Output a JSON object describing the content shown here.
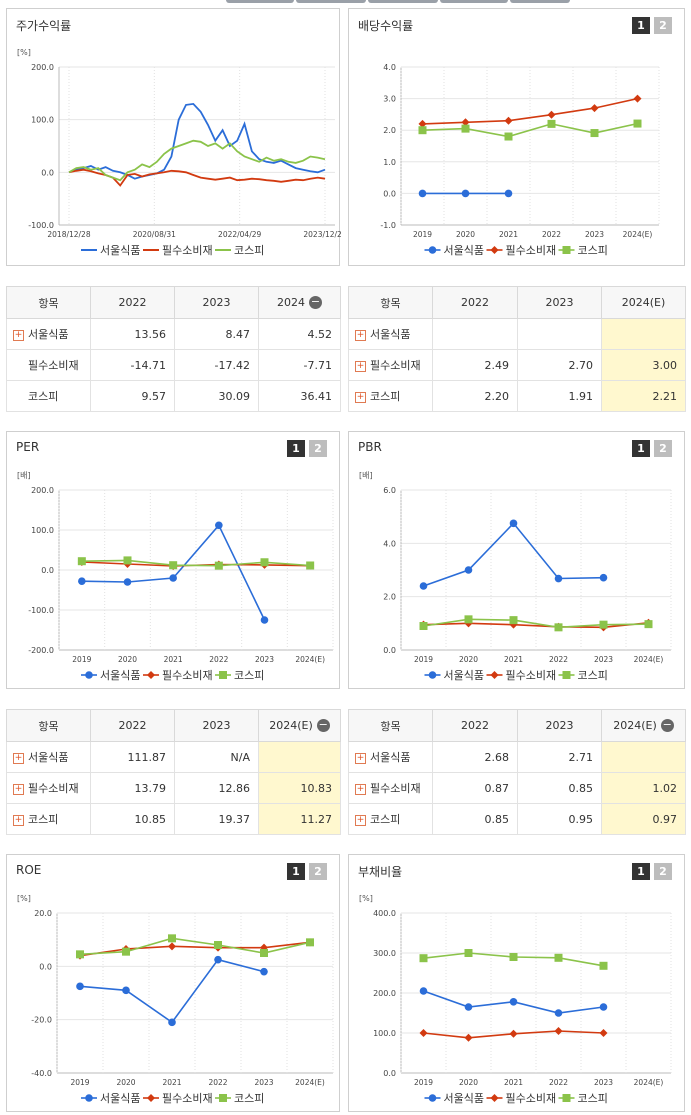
{
  "colors": {
    "seoul": "#2b6dd8",
    "consumer": "#d23a10",
    "kospi": "#8bc34a"
  },
  "icons": {
    "plus": "plus-icon",
    "minus": "minus-icon"
  },
  "legend": [
    "서울식품",
    "필수소비재",
    "코스피"
  ],
  "panels": {
    "stock": {
      "title": "주가수익률"
    },
    "dividend": {
      "title": "배당수익률",
      "btn1": "1",
      "btn2": "2"
    },
    "per": {
      "title": "PER",
      "btn1": "1",
      "btn2": "2"
    },
    "pbr": {
      "title": "PBR",
      "btn1": "1",
      "btn2": "2"
    },
    "roe": {
      "title": "ROE",
      "btn1": "1",
      "btn2": "2"
    },
    "debt": {
      "title": "부채비율",
      "btn1": "1",
      "btn2": "2"
    }
  },
  "tables": {
    "stock": {
      "headers": [
        "항목",
        "2022",
        "2023",
        "2024"
      ],
      "minus": "−",
      "rows": [
        {
          "label": "서울식품",
          "expand": true,
          "values": [
            "13.56",
            "8.47",
            "4.52"
          ]
        },
        {
          "label": "필수소비재",
          "expand": false,
          "values": [
            "-14.71",
            "-17.42",
            "-7.71"
          ]
        },
        {
          "label": "코스피",
          "expand": false,
          "values": [
            "9.57",
            "30.09",
            "36.41"
          ]
        }
      ]
    },
    "dividend": {
      "headers": [
        "항목",
        "2022",
        "2023",
        "2024(E)"
      ],
      "minus": "",
      "rows": [
        {
          "label": "서울식품",
          "expand": true,
          "values": [
            "",
            "",
            ""
          ]
        },
        {
          "label": "필수소비재",
          "expand": true,
          "values": [
            "2.49",
            "2.70",
            "3.00"
          ]
        },
        {
          "label": "코스피",
          "expand": true,
          "values": [
            "2.20",
            "1.91",
            "2.21"
          ]
        }
      ]
    },
    "per": {
      "headers": [
        "항목",
        "2022",
        "2023",
        "2024(E)"
      ],
      "minus": "−",
      "rows": [
        {
          "label": "서울식품",
          "expand": true,
          "values": [
            "111.87",
            "N/A",
            ""
          ]
        },
        {
          "label": "필수소비재",
          "expand": true,
          "values": [
            "13.79",
            "12.86",
            "10.83"
          ]
        },
        {
          "label": "코스피",
          "expand": true,
          "values": [
            "10.85",
            "19.37",
            "11.27"
          ]
        }
      ]
    },
    "pbr": {
      "headers": [
        "항목",
        "2022",
        "2023",
        "2024(E)"
      ],
      "minus": "−",
      "rows": [
        {
          "label": "서울식품",
          "expand": true,
          "values": [
            "2.68",
            "2.71",
            ""
          ]
        },
        {
          "label": "필수소비재",
          "expand": true,
          "values": [
            "0.87",
            "0.85",
            "1.02"
          ]
        },
        {
          "label": "코스피",
          "expand": true,
          "values": [
            "0.85",
            "0.95",
            "0.97"
          ]
        }
      ]
    }
  },
  "chart_data": [
    {
      "id": "stock",
      "type": "line",
      "unit": "[%]",
      "ylim": [
        -100,
        200
      ],
      "yticks": [
        "200.0",
        "100.0",
        "0.0",
        "-100.0"
      ],
      "xticks": [
        "2018/12/28",
        "2020/08/31",
        "2022/04/29",
        "2023/12/28"
      ],
      "series": [
        {
          "name": "서울식품",
          "values": [
            0,
            5,
            8,
            12,
            5,
            10,
            3,
            0,
            -5,
            -12,
            -8,
            -5,
            -2,
            5,
            30,
            100,
            128,
            130,
            115,
            90,
            60,
            80,
            50,
            60,
            92,
            40,
            25,
            20,
            18,
            22,
            15,
            8,
            5,
            2,
            0,
            5
          ]
        },
        {
          "name": "필수소비재",
          "values": [
            0,
            3,
            5,
            2,
            -2,
            -5,
            -10,
            -25,
            -5,
            -3,
            -8,
            -4,
            -2,
            0,
            3,
            2,
            0,
            -5,
            -10,
            -12,
            -14,
            -12,
            -10,
            -15,
            -14,
            -12,
            -13,
            -15,
            -16,
            -18,
            -16,
            -14,
            -15,
            -12,
            -10,
            -12
          ]
        },
        {
          "name": "코스피",
          "values": [
            0,
            8,
            10,
            5,
            8,
            -5,
            -10,
            -15,
            0,
            5,
            15,
            10,
            20,
            35,
            45,
            50,
            55,
            60,
            58,
            50,
            55,
            45,
            55,
            40,
            30,
            25,
            20,
            28,
            22,
            25,
            20,
            18,
            22,
            30,
            28,
            25
          ]
        }
      ]
    },
    {
      "id": "dividend",
      "type": "line",
      "unit": "",
      "ylim": [
        -1,
        4
      ],
      "yticks": [
        "4.0",
        "3.0",
        "2.0",
        "1.0",
        "0.0",
        "-1.0"
      ],
      "categories": [
        "2019",
        "2020",
        "2021",
        "2022",
        "2023",
        "2024(E)"
      ],
      "series": [
        {
          "name": "서울식품",
          "values": [
            0,
            0,
            0,
            null,
            null,
            null
          ]
        },
        {
          "name": "필수소비재",
          "values": [
            2.2,
            2.25,
            2.3,
            2.49,
            2.7,
            3.0
          ]
        },
        {
          "name": "코스피",
          "values": [
            2.0,
            2.05,
            1.8,
            2.2,
            1.91,
            2.21
          ]
        }
      ]
    },
    {
      "id": "per",
      "type": "line",
      "unit": "[배]",
      "ylim": [
        -200,
        200
      ],
      "yticks": [
        "200.0",
        "100.0",
        "0.0",
        "-100.0",
        "-200.0"
      ],
      "categories": [
        "2019",
        "2020",
        "2021",
        "2022",
        "2023",
        "2024(E)"
      ],
      "series": [
        {
          "name": "서울식품",
          "values": [
            -28,
            -30,
            -20,
            111.87,
            -125,
            null
          ]
        },
        {
          "name": "필수소비재",
          "values": [
            20,
            15,
            10,
            13.79,
            12.86,
            10.83
          ]
        },
        {
          "name": "코스피",
          "values": [
            22,
            24,
            12,
            10.85,
            19.37,
            11.27
          ]
        }
      ]
    },
    {
      "id": "pbr",
      "type": "line",
      "unit": "[배]",
      "ylim": [
        0,
        6
      ],
      "yticks": [
        "6.0",
        "4.0",
        "2.0",
        "0.0"
      ],
      "categories": [
        "2019",
        "2020",
        "2021",
        "2022",
        "2023",
        "2024(E)"
      ],
      "series": [
        {
          "name": "서울식품",
          "values": [
            2.4,
            3.0,
            4.75,
            2.68,
            2.71,
            null
          ]
        },
        {
          "name": "필수소비재",
          "values": [
            0.95,
            1.0,
            0.95,
            0.87,
            0.85,
            1.02
          ]
        },
        {
          "name": "코스피",
          "values": [
            0.9,
            1.15,
            1.12,
            0.85,
            0.95,
            0.97
          ]
        }
      ]
    },
    {
      "id": "roe",
      "type": "line",
      "unit": "[%]",
      "ylim": [
        -40,
        20
      ],
      "yticks": [
        "20.0",
        "0.0",
        "-20.0",
        "-40.0"
      ],
      "categories": [
        "2019",
        "2020",
        "2021",
        "2022",
        "2023",
        "2024(E)"
      ],
      "series": [
        {
          "name": "서울식품",
          "values": [
            -7.5,
            -9,
            -21,
            2.5,
            -2,
            null
          ]
        },
        {
          "name": "필수소비재",
          "values": [
            4,
            6.5,
            7.5,
            7,
            7,
            9
          ]
        },
        {
          "name": "코스피",
          "values": [
            4.5,
            5.5,
            10.5,
            8,
            5,
            9
          ]
        }
      ]
    },
    {
      "id": "debt",
      "type": "line",
      "unit": "[%]",
      "ylim": [
        0,
        400
      ],
      "yticks": [
        "400.0",
        "300.0",
        "200.0",
        "100.0",
        "0.0"
      ],
      "categories": [
        "2019",
        "2020",
        "2021",
        "2022",
        "2023",
        "2024(E)"
      ],
      "series": [
        {
          "name": "서울식품",
          "values": [
            205,
            165,
            178,
            150,
            165,
            null
          ]
        },
        {
          "name": "필수소비재",
          "values": [
            100,
            88,
            98,
            105,
            100,
            null
          ]
        },
        {
          "name": "코스피",
          "values": [
            287,
            300,
            290,
            288,
            268,
            null
          ]
        }
      ]
    }
  ]
}
